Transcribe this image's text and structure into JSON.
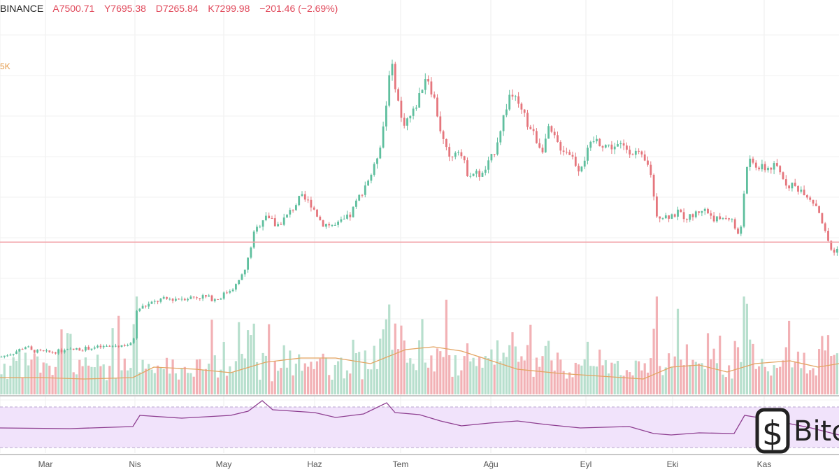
{
  "header": {
    "exchange": "BINANCE",
    "open": "A7500.71",
    "high": "Y7695.38",
    "low": "D7265.84",
    "close": "K7299.98",
    "change": "−201.46 (−2.69%)"
  },
  "side_label": "5K",
  "logo": {
    "text": "Bitc",
    "icon": "bitcoin-icon"
  },
  "colors": {
    "up": "#5fbf9e",
    "down": "#e5767d",
    "vol_up": "#b7dfcd",
    "vol_down": "#f2b1b5",
    "ma": "#e3a462",
    "rsi_fill": "#f1e3fb",
    "rsi_line": "#8e3f91",
    "hline": "#f2a3a8"
  },
  "chart_data": {
    "type": "candlestick",
    "x_ticks": [
      "Mar",
      "Nis",
      "May",
      "Haz",
      "Tem",
      "Ağu",
      "Eyl",
      "Eki",
      "Kas"
    ],
    "price_range": [
      3500,
      14000
    ],
    "horizontal_line": 7300,
    "price_path": [
      [
        0,
        3700
      ],
      [
        20,
        3850
      ],
      [
        38,
        4050
      ],
      [
        45,
        3900
      ],
      [
        70,
        3850
      ],
      [
        110,
        3950
      ],
      [
        160,
        4050
      ],
      [
        190,
        4100
      ],
      [
        196,
        5200
      ],
      [
        230,
        5500
      ],
      [
        260,
        5550
      ],
      [
        290,
        5600
      ],
      [
        310,
        5500
      ],
      [
        340,
        6000
      ],
      [
        352,
        6500
      ],
      [
        362,
        7500
      ],
      [
        380,
        8200
      ],
      [
        395,
        7800
      ],
      [
        410,
        8100
      ],
      [
        430,
        8700
      ],
      [
        445,
        8500
      ],
      [
        460,
        7900
      ],
      [
        480,
        7800
      ],
      [
        500,
        8100
      ],
      [
        520,
        9000
      ],
      [
        535,
        9600
      ],
      [
        545,
        10500
      ],
      [
        552,
        11500
      ],
      [
        558,
        13000
      ],
      [
        565,
        12300
      ],
      [
        575,
        11000
      ],
      [
        590,
        11300
      ],
      [
        600,
        11900
      ],
      [
        610,
        12600
      ],
      [
        622,
        11700
      ],
      [
        632,
        10600
      ],
      [
        642,
        9900
      ],
      [
        655,
        10300
      ],
      [
        668,
        9500
      ],
      [
        690,
        9400
      ],
      [
        705,
        10000
      ],
      [
        720,
        11200
      ],
      [
        730,
        12000
      ],
      [
        745,
        11400
      ],
      [
        760,
        10800
      ],
      [
        775,
        10200
      ],
      [
        785,
        10800
      ],
      [
        800,
        10300
      ],
      [
        815,
        10100
      ],
      [
        828,
        9600
      ],
      [
        840,
        10100
      ],
      [
        850,
        10500
      ],
      [
        870,
        10300
      ],
      [
        890,
        10300
      ],
      [
        910,
        10100
      ],
      [
        930,
        9600
      ],
      [
        938,
        8200
      ],
      [
        950,
        8100
      ],
      [
        970,
        8200
      ],
      [
        985,
        8050
      ],
      [
        1005,
        8350
      ],
      [
        1025,
        8000
      ],
      [
        1045,
        8100
      ],
      [
        1058,
        7350
      ],
      [
        1066,
        9400
      ],
      [
        1072,
        9800
      ],
      [
        1090,
        9600
      ],
      [
        1110,
        9650
      ],
      [
        1125,
        9150
      ],
      [
        1150,
        8900
      ],
      [
        1170,
        8400
      ],
      [
        1180,
        7600
      ],
      [
        1192,
        6900
      ],
      [
        1200,
        7300
      ]
    ],
    "volume_ma_path": [
      [
        0,
        540
      ],
      [
        60,
        540
      ],
      [
        120,
        542
      ],
      [
        190,
        540
      ],
      [
        220,
        525
      ],
      [
        280,
        528
      ],
      [
        330,
        533
      ],
      [
        380,
        518
      ],
      [
        430,
        512
      ],
      [
        480,
        512
      ],
      [
        530,
        520
      ],
      [
        580,
        500
      ],
      [
        620,
        496
      ],
      [
        660,
        502
      ],
      [
        700,
        515
      ],
      [
        740,
        528
      ],
      [
        800,
        534
      ],
      [
        860,
        538
      ],
      [
        920,
        542
      ],
      [
        960,
        525
      ],
      [
        1000,
        522
      ],
      [
        1040,
        532
      ],
      [
        1080,
        520
      ],
      [
        1130,
        516
      ],
      [
        1170,
        525
      ],
      [
        1200,
        520
      ]
    ],
    "rsi_path": [
      [
        0,
        612
      ],
      [
        100,
        613
      ],
      [
        190,
        610
      ],
      [
        200,
        594
      ],
      [
        260,
        598
      ],
      [
        330,
        594
      ],
      [
        355,
        588
      ],
      [
        375,
        573
      ],
      [
        390,
        586
      ],
      [
        420,
        588
      ],
      [
        450,
        590
      ],
      [
        480,
        597
      ],
      [
        520,
        592
      ],
      [
        553,
        576
      ],
      [
        565,
        590
      ],
      [
        600,
        593
      ],
      [
        630,
        602
      ],
      [
        660,
        609
      ],
      [
        700,
        605
      ],
      [
        740,
        602
      ],
      [
        780,
        607
      ],
      [
        830,
        612
      ],
      [
        900,
        610
      ],
      [
        935,
        620
      ],
      [
        960,
        622
      ],
      [
        1000,
        619
      ],
      [
        1050,
        620
      ],
      [
        1065,
        594
      ],
      [
        1090,
        598
      ],
      [
        1120,
        604
      ],
      [
        1160,
        612
      ],
      [
        1200,
        622
      ]
    ]
  }
}
